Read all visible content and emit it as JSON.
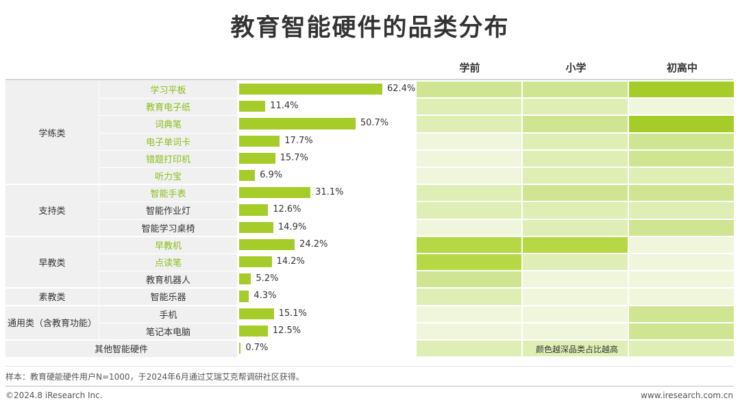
{
  "title": "教育智能硬件的品类分布",
  "heatmap_columns": [
    "学前",
    "小学",
    "初高中"
  ],
  "heatmap_note": "颜色越深品类占比越高",
  "colors": {
    "bar": "#a6cc2a",
    "highlight_text": "#8bbe1b",
    "heat_levels": [
      "#f0f6dc",
      "#dfeeb4",
      "#cfe591",
      "#b6d845",
      "#a6cc2a"
    ]
  },
  "groups": [
    {
      "name": "学练类"
    },
    {
      "name": "支持类"
    },
    {
      "name": "早教类"
    },
    {
      "name": "素教类"
    },
    {
      "name": "通用类（含教育功能）"
    },
    {
      "name": "其他智能硬件"
    }
  ],
  "chart_data": {
    "type": "bar",
    "orientation": "horizontal",
    "title": "教育智能硬件的品类分布",
    "xlim": [
      0,
      70
    ],
    "categories": [
      "学习平板",
      "教育电子纸",
      "词典笔",
      "电子单词卡",
      "错题打印机",
      "听力宝",
      "智能手表",
      "智能作业灯",
      "智能学习桌椅",
      "早教机",
      "点读笔",
      "教育机器人",
      "智能乐器",
      "手机",
      "笔记本电脑",
      "其他智能硬件"
    ],
    "group_of": [
      0,
      0,
      0,
      0,
      0,
      0,
      1,
      1,
      1,
      2,
      2,
      2,
      3,
      4,
      4,
      5
    ],
    "highlighted": [
      true,
      true,
      true,
      true,
      true,
      true,
      true,
      false,
      false,
      true,
      true,
      false,
      false,
      false,
      false,
      false
    ],
    "values": [
      62.4,
      11.4,
      50.7,
      17.7,
      15.7,
      6.9,
      31.1,
      12.6,
      14.9,
      24.2,
      14.2,
      5.2,
      4.3,
      15.1,
      12.5,
      0.7
    ],
    "labels": [
      "62.4%",
      "11.4%",
      "50.7%",
      "17.7%",
      "15.7%",
      "6.9%",
      "31.1%",
      "12.6%",
      "14.9%",
      "24.2%",
      "14.2%",
      "5.2%",
      "4.3%",
      "15.1%",
      "12.5%",
      "0.7%"
    ],
    "heatmap": {
      "columns": [
        "学前",
        "小学",
        "初高中"
      ],
      "levels": [
        [
          2,
          2,
          4
        ],
        [
          1,
          1,
          0
        ],
        [
          1,
          2,
          4
        ],
        [
          0,
          1,
          2
        ],
        [
          0,
          1,
          2
        ],
        [
          0,
          1,
          1
        ],
        [
          1,
          2,
          2
        ],
        [
          1,
          1,
          1
        ],
        [
          0,
          1,
          2
        ],
        [
          3,
          3,
          0
        ],
        [
          3,
          1,
          0
        ],
        [
          2,
          0,
          0
        ],
        [
          1,
          0,
          0
        ],
        [
          0,
          0,
          2
        ],
        [
          0,
          0,
          2
        ],
        [
          1,
          1,
          1
        ]
      ]
    }
  },
  "footer": {
    "sample": "样本：教育硬能硬件用户N=1000，于2024年6月通过艾瑞艾克帮调研社区获得。",
    "copyright": "©2024.8 iResearch Inc.",
    "website": "www.iresearch.com.cn"
  }
}
